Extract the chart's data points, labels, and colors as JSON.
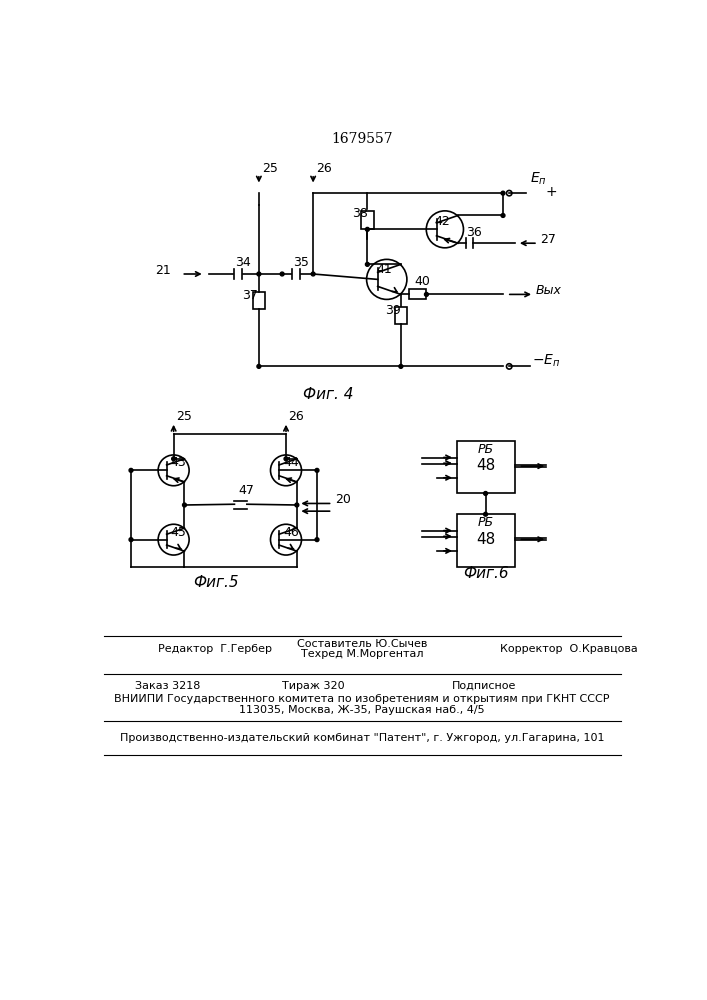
{
  "title": "1679557",
  "background_color": "#ffffff",
  "fig4_label": "Фиг. 4",
  "fig5_label": "Фиг.5",
  "fig6_label": "Фиг.6",
  "footer_editor": "Редактор  Г.Гербер",
  "footer_composer": "Составитель Ю.Сычев",
  "footer_techred": "Техред М.Моргентал",
  "footer_corrector": "Корректор  О.Кравцова",
  "footer_order": "Заказ 3218",
  "footer_tirazh": "Тираж 320",
  "footer_podp": "Подписное",
  "footer_vniipii": "ВНИИПИ Государственного комитета по изобретениям и открытиям при ГКНТ СССР",
  "footer_addr": "113035, Москва, Ж-35, Раушская наб., 4/5",
  "footer_patent": "Производственно-издательский комбинат \"Патент\", г. Ужгород, ул.Гагарина, 101"
}
